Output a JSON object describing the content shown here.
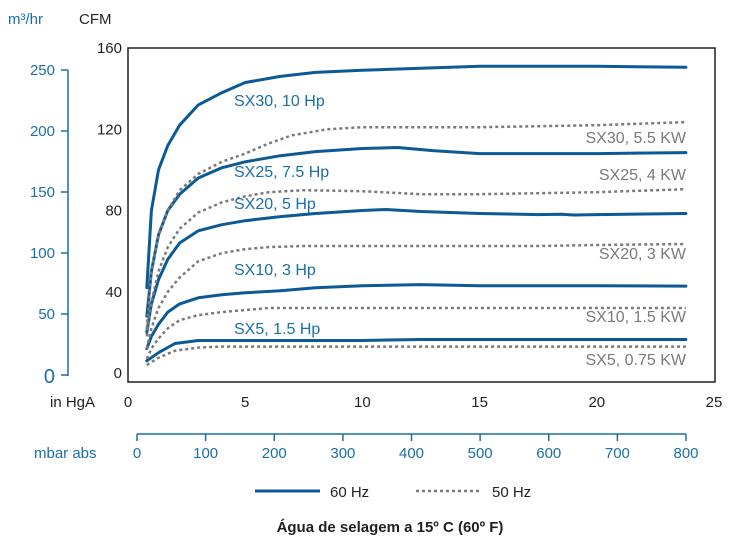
{
  "chart_data": {
    "type": "line",
    "title": "",
    "caption": "Água de selagem a 15º C (60º F)",
    "x_primary": {
      "label": "in HgA",
      "range": [
        0,
        25
      ],
      "ticks": [
        0,
        5,
        10,
        15,
        20,
        25
      ]
    },
    "x_secondary": {
      "label": "mbar abs",
      "range": [
        0,
        800
      ],
      "ticks": [
        0,
        100,
        200,
        300,
        400,
        500,
        600,
        700,
        800
      ]
    },
    "y_primary": {
      "label": "CFM",
      "range": [
        0,
        160
      ],
      "ticks": [
        0,
        40,
        80,
        120,
        160
      ]
    },
    "y_secondary": {
      "label": "m³/hr",
      "range": [
        0,
        272
      ],
      "ticks": [
        0,
        50,
        100,
        150,
        200,
        250
      ]
    },
    "legend": {
      "position": "bottom",
      "items": [
        {
          "label": "60 Hz",
          "style": "solid"
        },
        {
          "label": "50 Hz",
          "style": "dotted"
        }
      ]
    },
    "colors": {
      "solid": "#0b5a96",
      "dotted": "#7a7a7a",
      "axis_blue": "#1a6fa8",
      "text_black": "#231f20",
      "border": "#231f20"
    },
    "series": [
      {
        "name": "SX30, 10 Hp",
        "style": "solid",
        "x": [
          0.8,
          1.0,
          1.3,
          1.7,
          2.2,
          3.0,
          4.0,
          5.0,
          6.5,
          8.0,
          10.0,
          12.5,
          15.0,
          17.5,
          20.0,
          23.8
        ],
        "y": [
          42,
          80,
          100,
          112,
          122,
          132,
          138,
          143,
          146,
          148,
          149,
          150,
          151,
          151,
          151,
          150.5
        ]
      },
      {
        "name": "SX25, 7.5 Hp",
        "style": "solid",
        "x": [
          0.8,
          1.0,
          1.3,
          1.7,
          2.2,
          3.0,
          4.0,
          5.0,
          6.5,
          8.0,
          10.0,
          11.5,
          13.0,
          15.0,
          17.5,
          20.0,
          23.8
        ],
        "y": [
          28,
          50,
          68,
          80,
          88,
          96,
          101,
          104,
          107,
          109,
          110.5,
          111,
          109.5,
          108,
          108,
          108,
          108.5
        ]
      },
      {
        "name": "SX20, 5 Hp",
        "style": "solid",
        "x": [
          0.8,
          1.0,
          1.3,
          1.7,
          2.2,
          3.0,
          4.0,
          5.0,
          6.5,
          8.0,
          10.0,
          11.0,
          12.5,
          15.0,
          17.5,
          18.5,
          19.0,
          20.0,
          23.8
        ],
        "y": [
          20,
          34,
          46,
          56,
          64,
          70,
          73,
          75,
          77,
          78.5,
          80,
          80.5,
          79.5,
          78.5,
          78,
          78.2,
          77.8,
          78,
          78.5
        ]
      },
      {
        "name": "SX10, 3 Hp",
        "style": "solid",
        "x": [
          0.8,
          1.0,
          1.3,
          1.7,
          2.2,
          3.0,
          4.0,
          5.0,
          6.5,
          8.0,
          10.0,
          12.5,
          15.0,
          17.5,
          20.0,
          23.8
        ],
        "y": [
          12,
          18,
          24,
          30,
          34,
          37,
          38.5,
          39.5,
          40.5,
          42,
          43,
          43.5,
          43,
          43,
          43,
          42.8
        ]
      },
      {
        "name": "SX5, 1.5 Hp",
        "style": "solid",
        "x": [
          0.8,
          1.3,
          2.0,
          3.0,
          4.0,
          5.0,
          7.5,
          10.0,
          12.5,
          15.0,
          17.5,
          20.0,
          23.8
        ],
        "y": [
          6,
          10,
          14.5,
          16,
          16,
          16,
          16,
          16,
          16.5,
          16.5,
          16.5,
          16.5,
          16.5
        ]
      },
      {
        "name": "SX30, 5.5 KW",
        "style": "dotted",
        "x": [
          0.8,
          1.0,
          1.3,
          1.7,
          2.2,
          3.0,
          4.0,
          5.0,
          6.0,
          7.0,
          8.5,
          10.0,
          12.5,
          15.0,
          17.5,
          20.0,
          23.8
        ],
        "y": [
          22,
          50,
          68,
          80,
          90,
          98,
          104,
          108,
          113,
          117,
          120,
          121,
          121,
          121,
          121.5,
          122,
          123.5
        ]
      },
      {
        "name": "SX25, 4 KW",
        "style": "dotted",
        "x": [
          0.8,
          1.0,
          1.3,
          1.7,
          2.2,
          3.0,
          4.0,
          5.0,
          6.0,
          7.5,
          10.0,
          12.5,
          15.0,
          17.5,
          20.0,
          23.8
        ],
        "y": [
          18,
          35,
          50,
          62,
          71,
          79,
          84,
          87,
          89,
          90,
          89.5,
          88,
          88,
          88.5,
          89,
          90.5
        ]
      },
      {
        "name": "SX20, 3 KW",
        "style": "dotted",
        "x": [
          0.8,
          1.0,
          1.3,
          1.7,
          2.2,
          3.0,
          4.0,
          5.0,
          6.0,
          7.5,
          10.0,
          12.5,
          15.0,
          17.5,
          20.0,
          23.8
        ],
        "y": [
          12,
          22,
          32,
          40,
          47,
          55,
          59,
          61,
          62,
          62.5,
          62.5,
          62.5,
          62.5,
          62.5,
          63,
          63.5
        ]
      },
      {
        "name": "SX10, 1.5 KW",
        "style": "dotted",
        "x": [
          0.8,
          1.0,
          1.3,
          1.7,
          2.2,
          3.0,
          4.0,
          5.0,
          6.0,
          7.5,
          10.0,
          12.5,
          15.0,
          17.5,
          20.0,
          23.8
        ],
        "y": [
          7,
          12,
          17,
          22,
          26,
          28.5,
          30,
          31,
          32,
          32,
          32,
          32,
          32,
          32,
          32,
          32
        ]
      },
      {
        "name": "SX5, 0.75 KW",
        "style": "dotted",
        "x": [
          0.8,
          1.3,
          2.0,
          3.0,
          4.0,
          5.0,
          7.5,
          10.0,
          12.5,
          15.0,
          17.5,
          20.0,
          23.8
        ],
        "y": [
          4,
          7.5,
          11,
          12.5,
          13,
          13,
          13,
          13,
          13,
          13,
          13,
          13,
          13
        ]
      }
    ],
    "series_labels": [
      {
        "text": "SX30, 10 Hp",
        "side": "left"
      },
      {
        "text": "SX25, 7.5 Hp",
        "side": "left"
      },
      {
        "text": "SX20, 5 Hp",
        "side": "left"
      },
      {
        "text": "SX10, 3 Hp",
        "side": "left"
      },
      {
        "text": "SX5, 1.5 Hp",
        "side": "left"
      },
      {
        "text": "SX30, 5.5 KW",
        "side": "right"
      },
      {
        "text": "SX25, 4 KW",
        "side": "right"
      },
      {
        "text": "SX20, 3 KW",
        "side": "right"
      },
      {
        "text": "SX10, 1.5 KW",
        "side": "right"
      },
      {
        "text": "SX5, 0.75 KW",
        "side": "right"
      }
    ]
  }
}
